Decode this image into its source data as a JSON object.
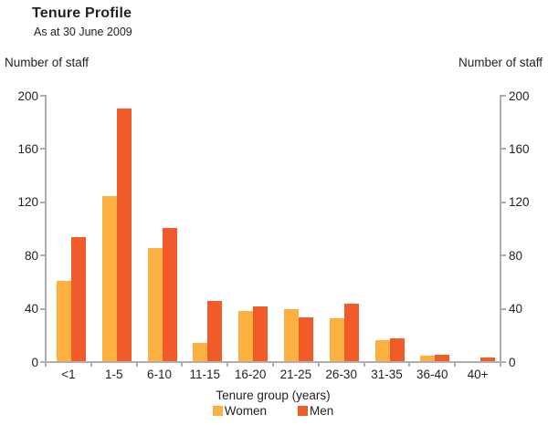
{
  "header": {
    "title": "Tenure Profile",
    "subtitle": "As at 30 June 2009"
  },
  "axis_labels": {
    "left": "Number of staff",
    "right": "Number of staff"
  },
  "chart_data": {
    "type": "bar",
    "title": "Tenure Profile",
    "subtitle": "As at 30 June 2009",
    "categories": [
      "<1",
      "1-5",
      "6-10",
      "11-15",
      "16-20",
      "21-25",
      "26-30",
      "31-35",
      "36-40",
      "40+"
    ],
    "series": [
      {
        "name": "Women",
        "color": "#FBB03F",
        "values": [
          60,
          124,
          85,
          14,
          38,
          39,
          32,
          16,
          4,
          0
        ]
      },
      {
        "name": "Men",
        "color": "#F15A29",
        "values": [
          93,
          190,
          100,
          45,
          41,
          33,
          43,
          17,
          5,
          3
        ]
      }
    ],
    "xlabel": "Tenure group (years)",
    "ylabel_left": "Number of staff",
    "ylabel_right": "Number of staff",
    "ylim": [
      0,
      200
    ],
    "yticks": [
      0,
      40,
      80,
      120,
      160,
      200
    ],
    "grid": false,
    "legend_position": "bottom",
    "axis_color": "#ABADB0",
    "text_color": "#231F20"
  },
  "legend": {
    "items": [
      {
        "label": "Women",
        "color": "#FBB03F"
      },
      {
        "label": "Men",
        "color": "#F15A29"
      }
    ]
  }
}
